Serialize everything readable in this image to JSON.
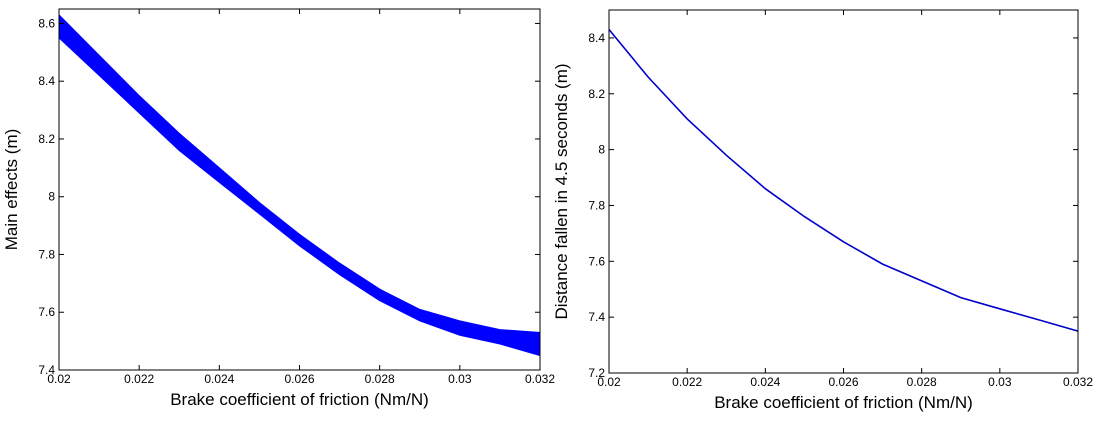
{
  "chart_data": [
    {
      "type": "area",
      "title": "",
      "xlabel": "Brake coefficient of friction (Nm/N)",
      "ylabel": "Main effects (m)",
      "xlim": [
        0.02,
        0.032
      ],
      "ylim": [
        7.4,
        8.65
      ],
      "xticks": [
        "0.02",
        "0.022",
        "0.024",
        "0.026",
        "0.028",
        "0.03",
        "0.032"
      ],
      "yticks": [
        "7.4",
        "7.6",
        "7.8",
        "8",
        "8.2",
        "8.4",
        "8.6"
      ],
      "grid": false,
      "series": [
        {
          "color": "#0000ff",
          "x": [
            0.02,
            0.021,
            0.022,
            0.023,
            0.024,
            0.025,
            0.026,
            0.027,
            0.028,
            0.029,
            0.03,
            0.031,
            0.032
          ],
          "upper": [
            8.63,
            8.49,
            8.35,
            8.22,
            8.1,
            7.98,
            7.87,
            7.77,
            7.68,
            7.61,
            7.57,
            7.54,
            7.53
          ],
          "lower": [
            8.55,
            8.42,
            8.29,
            8.16,
            8.05,
            7.94,
            7.83,
            7.73,
            7.64,
            7.57,
            7.52,
            7.49,
            7.45
          ]
        }
      ]
    },
    {
      "type": "line",
      "title": "",
      "xlabel": "Brake coefficient of friction (Nm/N)",
      "ylabel": "Distance fallen in 4.5 seconds  (m)",
      "xlim": [
        0.02,
        0.032
      ],
      "ylim": [
        7.2,
        8.5
      ],
      "xticks": [
        "0.02",
        "0.022",
        "0.024",
        "0.026",
        "0.028",
        "0.03",
        "0.032"
      ],
      "yticks": [
        "7.2",
        "7.4",
        "7.6",
        "7.8",
        "8",
        "8.2",
        "8.4"
      ],
      "grid": false,
      "series": [
        {
          "color": "#0000cc",
          "x": [
            0.02,
            0.021,
            0.022,
            0.023,
            0.024,
            0.025,
            0.026,
            0.027,
            0.028,
            0.029,
            0.03,
            0.031,
            0.032
          ],
          "y": [
            8.43,
            8.26,
            8.11,
            7.98,
            7.86,
            7.76,
            7.67,
            7.59,
            7.53,
            7.47,
            7.43,
            7.39,
            7.35
          ]
        }
      ]
    }
  ]
}
